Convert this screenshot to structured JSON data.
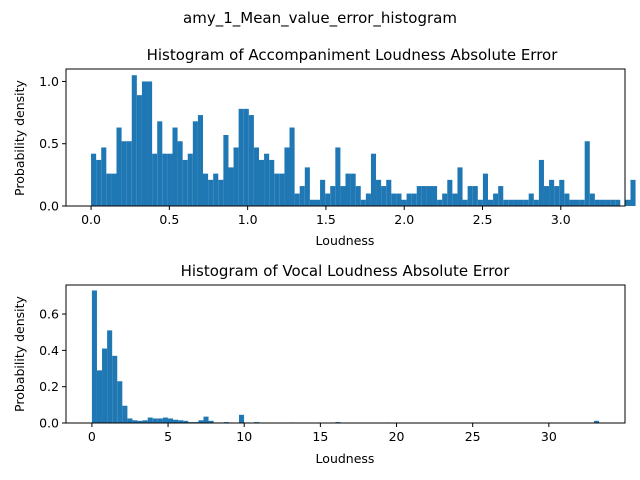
{
  "figure_title": "amy_1_Mean_value_error_histogram",
  "colors": {
    "bar": "#1f77b4",
    "axes": "#000000",
    "background": "#ffffff"
  },
  "chart_data": [
    {
      "type": "bar",
      "title": "Histogram of Accompaniment Loudness Absolute Error",
      "xlabel": "Loudness",
      "ylabel": "Probability density",
      "xlim": [
        -0.16,
        3.41
      ],
      "ylim": [
        0,
        1.1
      ],
      "xticks": [
        0.0,
        0.5,
        1.0,
        1.5,
        2.0,
        2.5,
        3.0
      ],
      "xtick_labels": [
        "0.0",
        "0.5",
        "1.0",
        "1.5",
        "2.0",
        "2.5",
        "3.0"
      ],
      "yticks": [
        0.0,
        0.5,
        1.0
      ],
      "ytick_labels": [
        "0.0",
        "0.5",
        "1.0"
      ],
      "bin_start": 0.0,
      "bin_width": 0.0325,
      "values": [
        0.42,
        0.37,
        0.47,
        0.26,
        0.26,
        0.63,
        0.52,
        0.52,
        1.05,
        0.89,
        1.0,
        1.0,
        0.42,
        0.68,
        0.42,
        0.42,
        0.63,
        0.52,
        0.37,
        0.42,
        0.68,
        0.73,
        0.26,
        0.21,
        0.26,
        0.21,
        0.57,
        0.31,
        0.47,
        0.78,
        0.78,
        0.73,
        0.47,
        0.37,
        0.42,
        0.37,
        0.26,
        0.26,
        0.47,
        0.63,
        0.1,
        0.16,
        0.31,
        0.05,
        0.05,
        0.21,
        0.1,
        0.16,
        0.47,
        0.16,
        0.26,
        0.26,
        0.16,
        0.05,
        0.1,
        0.42,
        0.21,
        0.16,
        0.21,
        0.1,
        0.1,
        0.05,
        0.1,
        0.1,
        0.16,
        0.16,
        0.16,
        0.16,
        0.05,
        0.1,
        0.21,
        0.1,
        0.31,
        0.05,
        0.16,
        0.16,
        0.05,
        0.26,
        0.05,
        0.1,
        0.16,
        0.05,
        0.05,
        0.05,
        0.05,
        0.05,
        0.1,
        0.05,
        0.37,
        0.16,
        0.21,
        0.16,
        0.21,
        0.1,
        0.05,
        0.05,
        0.05,
        0.52,
        0.1,
        0.05,
        0.05,
        0.05,
        0.05,
        0.05,
        0.0,
        0.05,
        0.21
      ]
    },
    {
      "type": "bar",
      "title": "Histogram of Vocal Loudness Absolute Error",
      "xlabel": "Loudness",
      "ylabel": "Probability density",
      "xlim": [
        -1.7,
        35.0
      ],
      "ylim": [
        0,
        0.76
      ],
      "xticks": [
        0,
        5,
        10,
        15,
        20,
        25,
        30
      ],
      "xtick_labels": [
        "0",
        "5",
        "10",
        "15",
        "20",
        "25",
        "30"
      ],
      "yticks": [
        0.0,
        0.2,
        0.4,
        0.6
      ],
      "ytick_labels": [
        "0.0",
        "0.2",
        "0.4",
        "0.6"
      ],
      "bin_start": 0.0,
      "bin_width": 0.333,
      "values": [
        0.73,
        0.29,
        0.41,
        0.51,
        0.37,
        0.23,
        0.095,
        0.025,
        0.015,
        0.012,
        0.015,
        0.03,
        0.025,
        0.025,
        0.03,
        0.025,
        0.018,
        0.015,
        0.012,
        0.005,
        0.005,
        0.015,
        0.035,
        0.012,
        0.003,
        0.003,
        0.005,
        0.0,
        0.0,
        0.045,
        0.003,
        0.0,
        0.005,
        0.0,
        0.0,
        0.0,
        0.0,
        0.0,
        0.0,
        0.003,
        0.0,
        0.0,
        0.0,
        0.0,
        0.0,
        0.0,
        0.0,
        0.0,
        0.005,
        0.0,
        0.0,
        0.0,
        0.0,
        0.0,
        0.0,
        0.0,
        0.0,
        0.0,
        0.003,
        0.0,
        0.0,
        0.0,
        0.0,
        0.0,
        0.0,
        0.0,
        0.0,
        0.0,
        0.0,
        0.0,
        0.0,
        0.0,
        0.0,
        0.0,
        0.0,
        0.0,
        0.0,
        0.0,
        0.0,
        0.0,
        0.0,
        0.0,
        0.0,
        0.0,
        0.0,
        0.0,
        0.0,
        0.0,
        0.0,
        0.0,
        0.0,
        0.0,
        0.0,
        0.0,
        0.0,
        0.0,
        0.0,
        0.0,
        0.0,
        0.012
      ]
    }
  ]
}
